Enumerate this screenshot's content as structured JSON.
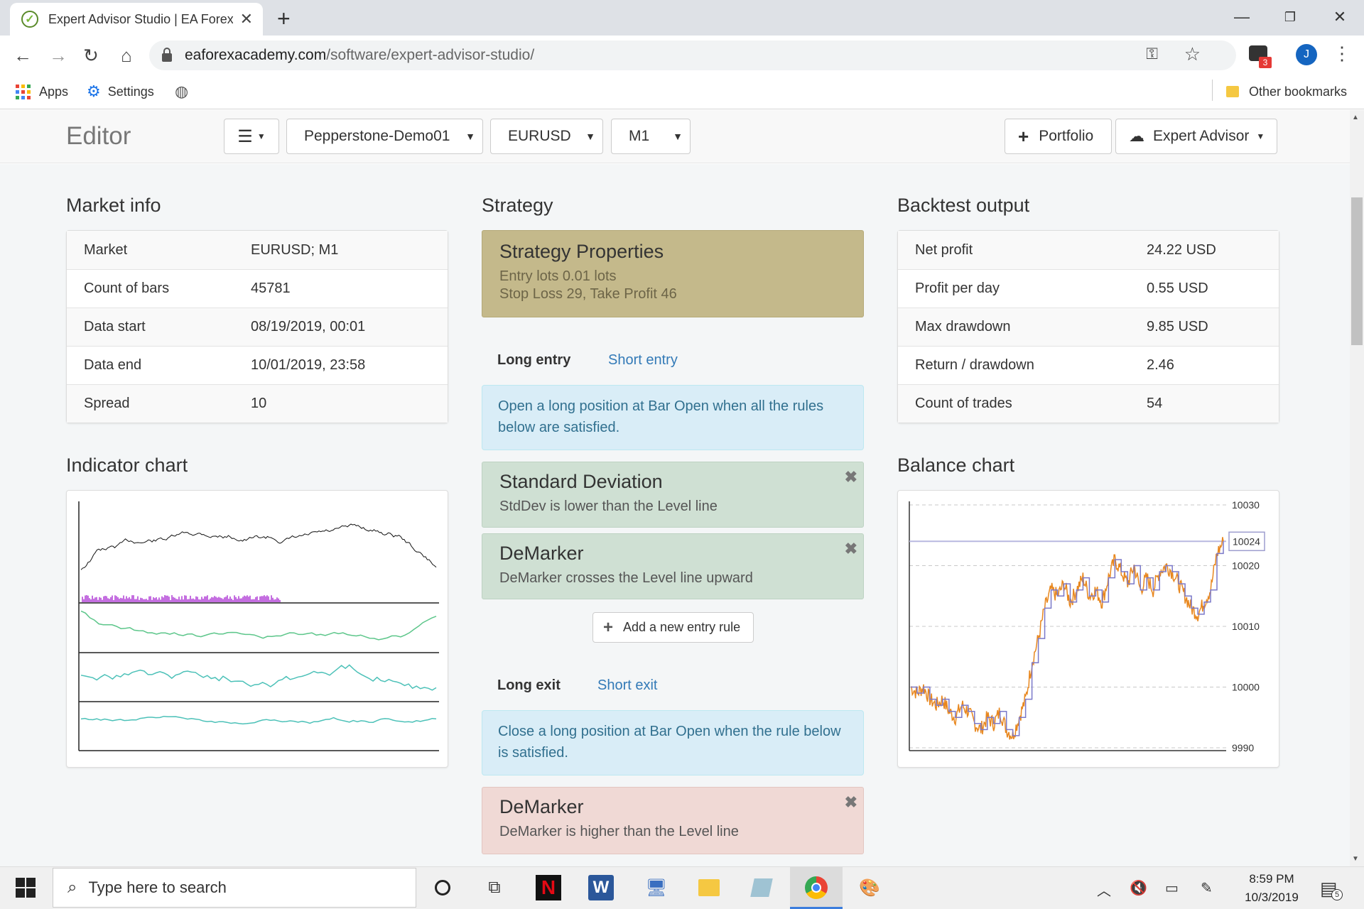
{
  "browser": {
    "tab_title": "Expert Advisor Studio | EA Forex Academy",
    "url_host": "eaforexacademy.com",
    "url_path": "/software/expert-advisor-studio/",
    "profile_initial": "J",
    "extension_badge": "3",
    "bookmarks": {
      "apps": "Apps",
      "settings": "Settings",
      "other": "Other bookmarks"
    }
  },
  "editor": {
    "title": "Editor",
    "menu_icon": "hamburger-icon",
    "server": "Pepperstone-Demo01",
    "symbol": "EURUSD",
    "timeframe": "M1",
    "portfolio_label": "Portfolio",
    "expert_advisor_label": "Expert Advisor"
  },
  "market_info": {
    "title": "Market info",
    "rows": [
      {
        "key": "Market",
        "value": "EURUSD; M1"
      },
      {
        "key": "Count of bars",
        "value": "45781"
      },
      {
        "key": "Data start",
        "value": "08/19/2019, 00:01"
      },
      {
        "key": "Data end",
        "value": "10/01/2019, 23:58"
      },
      {
        "key": "Spread",
        "value": "10"
      }
    ]
  },
  "indicator_chart": {
    "title": "Indicator chart"
  },
  "strategy": {
    "title": "Strategy",
    "properties_title": "Strategy Properties",
    "properties_line1": "Entry lots 0.01 lots",
    "properties_line2": "Stop Loss 29, Take Profit 46",
    "long_entry_tab": "Long entry",
    "short_entry_tab": "Short entry",
    "entry_info": "Open a long position at Bar Open when all the rules below are satisfied.",
    "entry_rules": [
      {
        "title": "Standard Deviation",
        "desc": "StdDev is lower than the Level line"
      },
      {
        "title": "DeMarker",
        "desc": "DeMarker crosses the Level line upward"
      }
    ],
    "add_entry_rule": "Add a new entry rule",
    "long_exit_tab": "Long exit",
    "short_exit_tab": "Short exit",
    "exit_info": "Close a long position at Bar Open when the rule below is satisfied.",
    "exit_rules": [
      {
        "title": "DeMarker",
        "desc": "DeMarker is higher than the Level line"
      }
    ]
  },
  "backtest": {
    "title": "Backtest output",
    "rows": [
      {
        "key": "Net profit",
        "value": "24.22 USD"
      },
      {
        "key": "Profit per day",
        "value": "0.55 USD"
      },
      {
        "key": "Max drawdown",
        "value": "9.85 USD"
      },
      {
        "key": "Return / drawdown",
        "value": "2.46"
      },
      {
        "key": "Count of trades",
        "value": "54"
      }
    ]
  },
  "balance_chart": {
    "title": "Balance chart",
    "y_ticks": [
      "10030",
      "10020",
      "10010",
      "10000",
      "9990"
    ],
    "current_label": "10024"
  },
  "chart_data": {
    "type": "line",
    "title": "Balance chart",
    "ylim": [
      9990,
      10030
    ],
    "grid": true,
    "series": [
      {
        "values": [
          10000,
          9999,
          10000,
          9998,
          9997,
          9998,
          9996,
          9995,
          9997,
          9996,
          9994,
          9993,
          9995,
          9994,
          9996,
          9993,
          9992,
          9995,
          9998,
          10004,
          10008,
          10013,
          10016,
          10015,
          10017,
          10014,
          10016,
          10018,
          10015,
          10016,
          10014,
          10018,
          10021,
          10019,
          10017,
          10020,
          10016,
          10018,
          10016,
          10019,
          10020,
          10019,
          10017,
          10015,
          10013,
          10012,
          10014,
          10016,
          10022,
          10024
        ]
      }
    ]
  },
  "taskbar": {
    "search_placeholder": "Type here to search",
    "time": "8:59 PM",
    "date": "10/3/2019",
    "notifications": "5"
  },
  "colors": {
    "properties_bg": "#c4b98b",
    "entry_rule_bg": "#cfe0d3",
    "exit_rule_bg": "#f0d9d5",
    "link": "#337ab7",
    "balance_line": "#e8871e",
    "balance_steps": "#7b79c9"
  }
}
